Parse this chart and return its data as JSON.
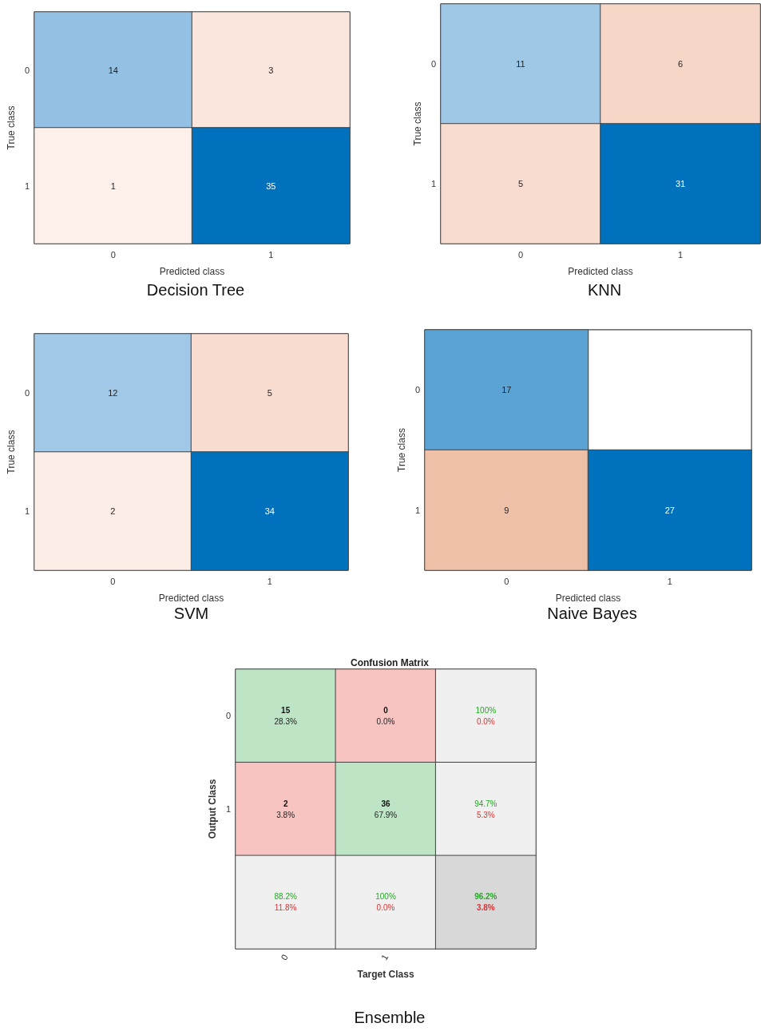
{
  "chart_data": [
    {
      "type": "heatmap",
      "title": "Decision Tree",
      "xlabel": "Predicted class",
      "ylabel": "True class",
      "categories": [
        "0",
        "1"
      ],
      "y_categories": [
        "0",
        "1"
      ],
      "cells": [
        [
          14,
          3
        ],
        [
          1,
          35
        ]
      ],
      "colors": [
        [
          "#94c0e3",
          "#fbe6de"
        ],
        [
          "#fdf0eb",
          "#0072bd"
        ]
      ],
      "data_labels": true
    },
    {
      "type": "heatmap",
      "title": "KNN",
      "xlabel": "Predicted class",
      "ylabel": "True class",
      "categories": [
        "0",
        "1"
      ],
      "y_categories": [
        "0",
        "1"
      ],
      "cells": [
        [
          11,
          6
        ],
        [
          5,
          31
        ]
      ],
      "colors": [
        [
          "#9fc7e6",
          "#f6d6c7"
        ],
        [
          "#f8dccf",
          "#0072bd"
        ]
      ],
      "data_labels": true
    },
    {
      "type": "heatmap",
      "title": "SVM",
      "xlabel": "Predicted class",
      "ylabel": "True class",
      "categories": [
        "0",
        "1"
      ],
      "y_categories": [
        "0",
        "1"
      ],
      "cells": [
        [
          12,
          5
        ],
        [
          2,
          34
        ]
      ],
      "colors": [
        [
          "#a1c9e7",
          "#f8dcd0"
        ],
        [
          "#fcede7",
          "#0072bd"
        ]
      ],
      "data_labels": true
    },
    {
      "type": "heatmap",
      "title": "Naive Bayes",
      "xlabel": "Predicted class",
      "ylabel": "True class",
      "categories": [
        "0",
        "1"
      ],
      "y_categories": [
        "0",
        "1"
      ],
      "cells": [
        [
          17,
          null
        ],
        [
          9,
          27
        ]
      ],
      "colors": [
        [
          "#5ba3d5",
          "#ffffff"
        ],
        [
          "#eec0a7",
          "#0072bd"
        ]
      ],
      "data_labels": true
    },
    {
      "type": "heatmap",
      "title": "Ensemble",
      "subtitle": "Confusion Matrix",
      "xlabel": "Target Class",
      "ylabel": "Output Class",
      "categories": [
        "0",
        "1",
        null
      ],
      "y_categories": [
        "0",
        "1",
        null
      ],
      "cells": [
        [
          15,
          0,
          100
        ],
        [
          2,
          36,
          94.7
        ],
        [
          88.2,
          100,
          96.2
        ]
      ],
      "cell_labels": [
        [
          "15",
          "0",
          "100%"
        ],
        [
          "2",
          "36",
          "94.7%"
        ],
        [
          "88.2%",
          "100%",
          "96.2%"
        ]
      ],
      "annotations": [
        "28.3%",
        "0.0%",
        "0.0%",
        "3.8%",
        "67.9%",
        "5.3%",
        "11.8%",
        "0.0%",
        "3.8%"
      ],
      "colors": [
        [
          "#bde5c5",
          "#f7c4c1",
          "#f0f0f0"
        ],
        [
          "#f7c4c1",
          "#bde5c5",
          "#f0f0f0"
        ],
        [
          "#f0f0f0",
          "#f0f0f0",
          "#d8d8d8"
        ]
      ],
      "data_labels": true
    }
  ]
}
